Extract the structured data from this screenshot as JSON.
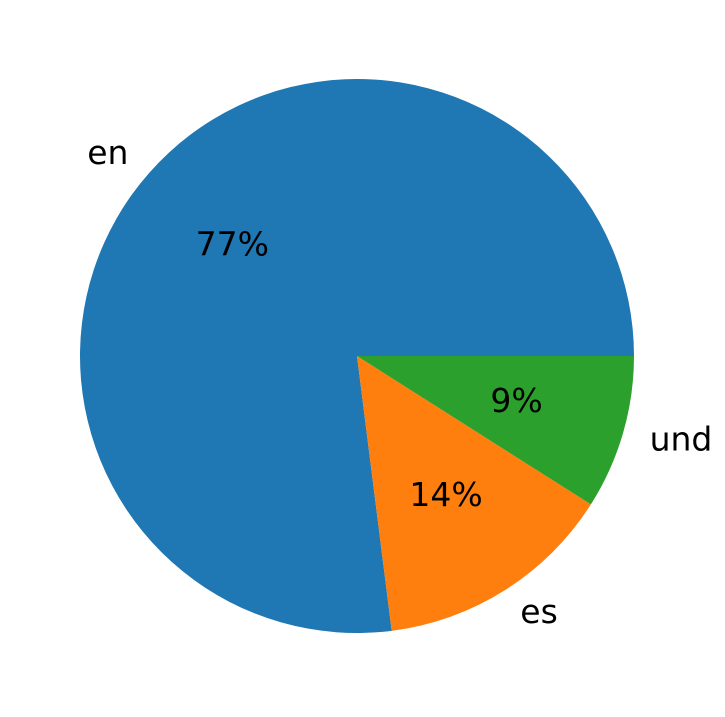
{
  "chart_data": {
    "type": "pie",
    "categories": [
      "en",
      "es",
      "und"
    ],
    "values": [
      77,
      14,
      9
    ],
    "value_labels": [
      "77%",
      "14%",
      "9%"
    ],
    "colors": [
      "#1f77b4",
      "#ff7f0e",
      "#2ca02c"
    ]
  }
}
